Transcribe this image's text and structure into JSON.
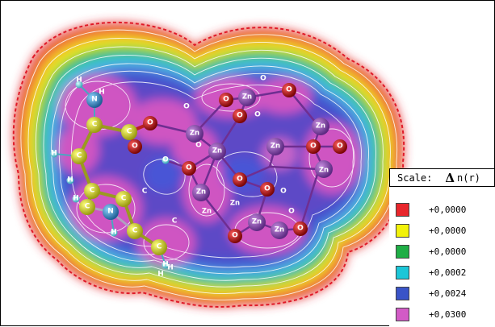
{
  "scale": {
    "label": "Scale:",
    "delta_symbol": "Δ",
    "function": "n(r)"
  },
  "legend": [
    {
      "value": "+0,0000",
      "color": "#e8262c"
    },
    {
      "value": "+0,0000",
      "color": "#f2f20a"
    },
    {
      "value": "+0,0000",
      "color": "#1fae46"
    },
    {
      "value": "+0,0002",
      "color": "#1cc6d8"
    },
    {
      "value": "+0,0024",
      "color": "#3a54c8"
    },
    {
      "value": "+0,0300",
      "color": "#d25bc6"
    }
  ],
  "atom_labels": [
    "H",
    "N",
    "C",
    "C",
    "O",
    "O",
    "H",
    "C",
    "C",
    "C",
    "C",
    "H",
    "H",
    "N",
    "C",
    "C",
    "H",
    "H",
    "O",
    "O",
    "Zn",
    "Zn",
    "O",
    "Zn",
    "O",
    "Zn",
    "Zn",
    "O",
    "O",
    "O",
    "O",
    "Zn",
    "Zn",
    "Zn",
    "O",
    "O",
    "O",
    "O",
    "O",
    "Zn",
    "Zn",
    "Zn",
    "O",
    "H",
    "C",
    "C",
    "H",
    "H",
    "O",
    "O",
    "O"
  ]
}
